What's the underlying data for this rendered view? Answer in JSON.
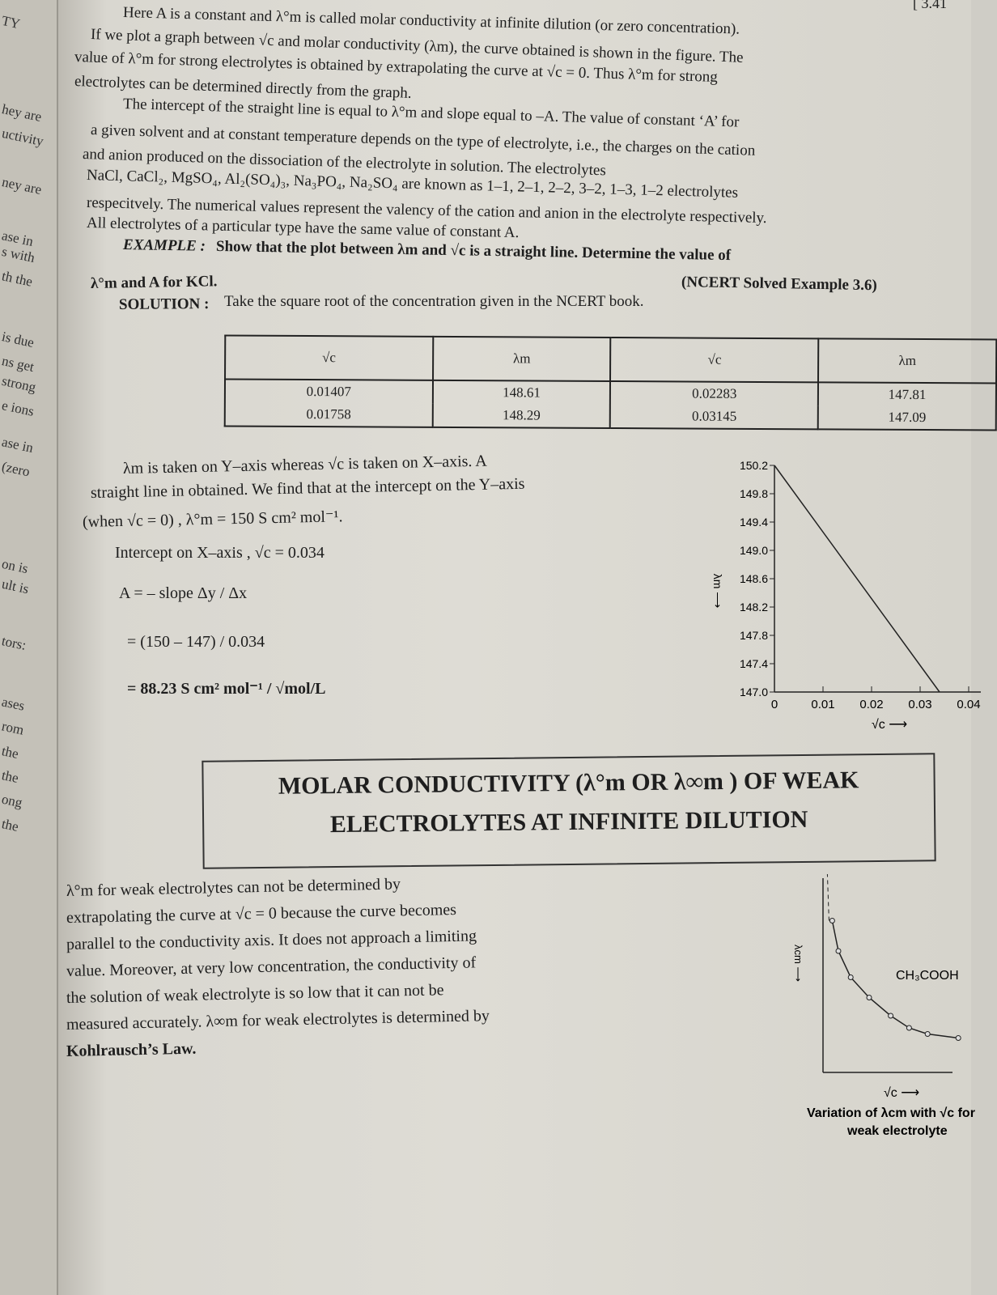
{
  "prev_page_margin": [
    "TY",
    "hey are",
    "uctivity",
    "ney are",
    "ase in",
    "s with",
    "th the",
    "is due",
    "ns get",
    "strong",
    "e ions",
    "ase in",
    "(zero",
    "on is",
    "ult is",
    "tors:",
    "ases",
    "rom",
    "the",
    "the",
    "ong",
    "the"
  ],
  "page_number": "[ 3.41",
  "paragraphs": [
    "Here A is a constant and λ°m is called molar conductivity at infinite dilution (or zero concentration).",
    "If we plot a graph between √c and molar conductivity (λm), the curve obtained is shown in the figure. The",
    "value of λ°m for strong electrolytes is obtained by extrapolating the curve at √c = 0. Thus λ°m for strong",
    "electrolytes can be determined directly from the graph.",
    "The intercept of the straight line is equal to λ°m and slope equal to –A. The value of constant ‘A’ for",
    "a given solvent and at constant temperature depends on the type of electrolyte, i.e., the charges on the cation",
    "and anion produced on the dissociation of the electrolyte in solution. The electrolytes",
    "NaCl, CaCl₂, MgSO₄, Al₂(SO₄)₃, Na₃PO₄, Na₂SO₄ are known as 1–1, 2–1, 2–2, 3–2, 1–3, 1–2 electrolytes",
    "respecitvely. The numerical values represent the valency of the cation and anion in the electrolyte respectively.",
    "All electrolytes of a particular type have the same value of constant A."
  ],
  "example": {
    "label": "EXAMPLE :",
    "text": "Show that the plot between λm and √c is a straight line. Determine the value of",
    "text2": "λ°m and A for KCl.",
    "source": "(NCERT Solved Example 3.6)",
    "solution_label": "SOLUTION :",
    "solution_text": "Take the square root of the concentration given in the NCERT book."
  },
  "table": {
    "headers": [
      "√c",
      "λm",
      "√c",
      "λm"
    ],
    "rows": [
      [
        "0.01407",
        "148.61",
        "0.02283",
        "147.81"
      ],
      [
        "0.01758",
        "148.29",
        "0.03145",
        "147.09"
      ]
    ]
  },
  "solution_lines": [
    "λm is taken on Y–axis whereas √c is taken on X–axis. A",
    "straight line in obtained. We find that at the intercept on the Y–axis",
    "(when √c = 0) , λ°m = 150 S cm² mol⁻¹.",
    "Intercept on X–axis ,  √c = 0.034",
    "A = – slope  Δy / Δx",
    "=  (150 – 147) / 0.034",
    "= 88.23 S cm² mol⁻¹ / √mol/L"
  ],
  "chart_data": [
    {
      "type": "line",
      "xlabel": "√c ⟶",
      "ylabel": "λm ⟶",
      "xlim": [
        0,
        0.04
      ],
      "ylim": [
        147.0,
        150.2
      ],
      "x_ticks": [
        "0",
        "0.01",
        "0.02",
        "0.03",
        "0.04"
      ],
      "y_ticks": [
        "147.0",
        "147.4",
        "147.8",
        "148.2",
        "148.6",
        "149.0",
        "149.4",
        "149.8",
        "150.2"
      ],
      "x": [
        0,
        0.034
      ],
      "y": [
        150.2,
        147.0
      ],
      "grid": false
    },
    {
      "type": "line",
      "xlabel": "√c ⟶",
      "ylabel": "λcm ⟶",
      "series_label": "CH₃COOH",
      "caption": [
        "Variation of λcm with √c for",
        "weak electrolyte"
      ],
      "x": [
        0.3,
        0.5,
        0.9,
        1.5,
        2.2,
        2.8,
        3.4,
        4.4
      ],
      "y": [
        7.5,
        6.0,
        4.7,
        3.7,
        2.8,
        2.2,
        1.9,
        1.7
      ],
      "dashed_asymptote": true
    }
  ],
  "heading": {
    "line1": "MOLAR CONDUCTIVITY (λ°m OR λ∞m ) OF WEAK",
    "line2": "ELECTROLYTES AT INFINITE DILUTION"
  },
  "weak_paragraph": [
    "λ°m  for  weak  electrolytes  can  not  be  determined  by",
    "extrapolating  the  curve  at  √c = 0  because the curve becomes",
    "parallel to the conductivity axis.  It does not approach a limiting",
    "value.  Moreover, at very low concentration, the conductivity of",
    "the solution of weak electrolyte is so low that it can not be",
    "measured accurately.  λ∞m  for weak electrolytes is determined by",
    "Kohlrausch’s Law."
  ]
}
